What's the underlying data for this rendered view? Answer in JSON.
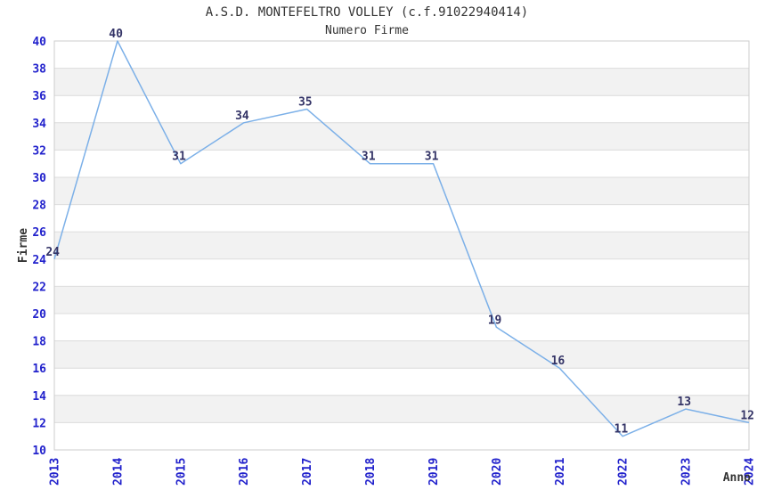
{
  "header": {
    "title": "A.S.D. MONTEFELTRO VOLLEY (c.f.91022940414)",
    "subtitle": "Numero Firme"
  },
  "chart_data": {
    "type": "line",
    "title": "A.S.D. MONTEFELTRO VOLLEY (c.f.91022940414)",
    "subtitle": "Numero Firme",
    "categories": [
      "2013",
      "2014",
      "2015",
      "2016",
      "2017",
      "2018",
      "2019",
      "2020",
      "2021",
      "2022",
      "2023",
      "2024"
    ],
    "values": [
      24,
      40,
      31,
      34,
      35,
      31,
      31,
      19,
      16,
      11,
      13,
      12
    ],
    "xlabel": "Anno",
    "ylabel": "Firme",
    "ylim": [
      10,
      40
    ],
    "ytick_step": 2,
    "grid": true,
    "data_labels": true,
    "legend_position": "none",
    "colors": {
      "line": "#7cb0e8",
      "tick_label": "#2222cc",
      "data_label": "#333366",
      "band": "#f2f2f2",
      "grid": "#dcdcdc",
      "border": "#cccccc",
      "text": "#333333"
    }
  }
}
